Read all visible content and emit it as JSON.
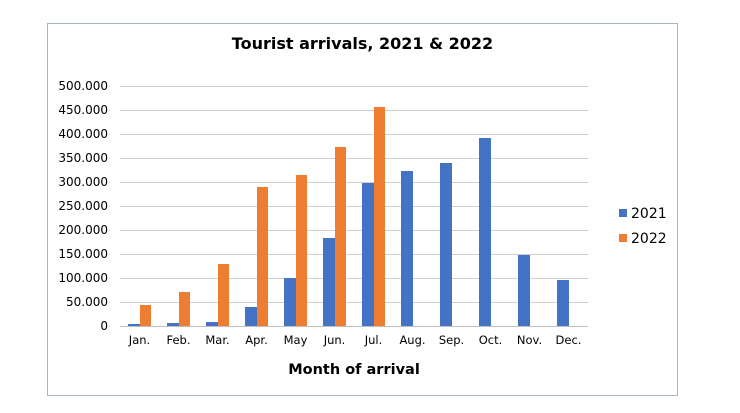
{
  "chart_data": {
    "type": "bar",
    "title": "Tourist arrivals, 2021 & 2022",
    "xlabel": "Month of arrival",
    "ylabel": "",
    "ylim": [
      0,
      500000
    ],
    "yticks": [
      0,
      50000,
      100000,
      150000,
      200000,
      250000,
      300000,
      350000,
      400000,
      450000,
      500000
    ],
    "ytick_labels": [
      "0",
      "50.000",
      "100.000",
      "150.000",
      "200.000",
      "250.000",
      "300.000",
      "350.000",
      "400.000",
      "450.000",
      "500.000"
    ],
    "grid": true,
    "legend_position": "right",
    "categories": [
      "Jan.",
      "Feb.",
      "Mar.",
      "Apr.",
      "May",
      "Jun.",
      "Jul.",
      "Aug.",
      "Sep.",
      "Oct.",
      "Nov.",
      "Dec."
    ],
    "series": [
      {
        "name": "2021",
        "color": "#4472c4",
        "values": [
          3500,
          5000,
          8500,
          38000,
          100000,
          183000,
          298000,
          322000,
          339000,
          392000,
          148000,
          95000
        ]
      },
      {
        "name": "2022",
        "color": "#ed7d31",
        "values": [
          44000,
          71000,
          128000,
          290000,
          315000,
          373000,
          455000,
          null,
          null,
          null,
          null,
          null
        ]
      }
    ]
  },
  "legend": [
    {
      "label": "2021",
      "color": "#4472c4"
    },
    {
      "label": "2022",
      "color": "#ed7d31"
    }
  ]
}
